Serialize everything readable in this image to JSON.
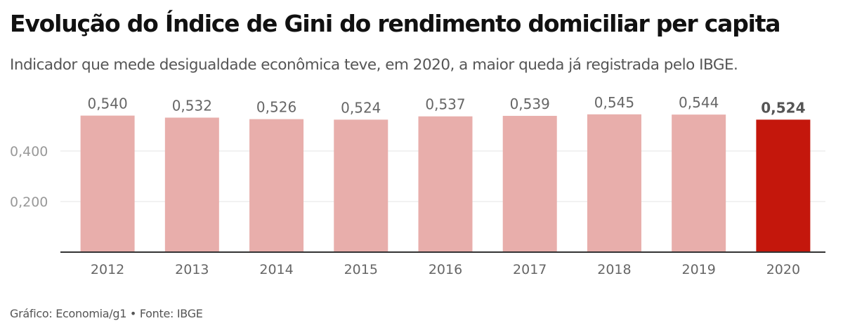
{
  "title": "Evolução do Índice de Gini do rendimento domiciliar per capita",
  "subtitle": "Indicador que mede desigualdade econômica teve, em 2020, a maior queda já registrada pelo IBGE.",
  "source": "Gráfico: Economia/g1 • Fonte: IBGE",
  "colors": {
    "bar": "#e8aeab",
    "highlight": "#c4170c",
    "grid": "#e6e6e6",
    "axis": "#333333"
  },
  "chart_data": {
    "type": "bar",
    "categories": [
      "2012",
      "2013",
      "2014",
      "2015",
      "2016",
      "2017",
      "2018",
      "2019",
      "2020"
    ],
    "values": [
      0.54,
      0.532,
      0.526,
      0.524,
      0.537,
      0.539,
      0.545,
      0.544,
      0.524
    ],
    "value_labels": [
      "0,540",
      "0,532",
      "0,526",
      "0,524",
      "0,537",
      "0,539",
      "0,545",
      "0,544",
      "0,524"
    ],
    "highlight_index": 8,
    "ylim": [
      0,
      0.6
    ],
    "yticks": [
      {
        "value": 0.2,
        "label": "0,200"
      },
      {
        "value": 0.4,
        "label": "0,400"
      }
    ],
    "grid": true,
    "title": "Evolução do Índice de Gini do rendimento domiciliar per capita",
    "xlabel": "",
    "ylabel": ""
  }
}
